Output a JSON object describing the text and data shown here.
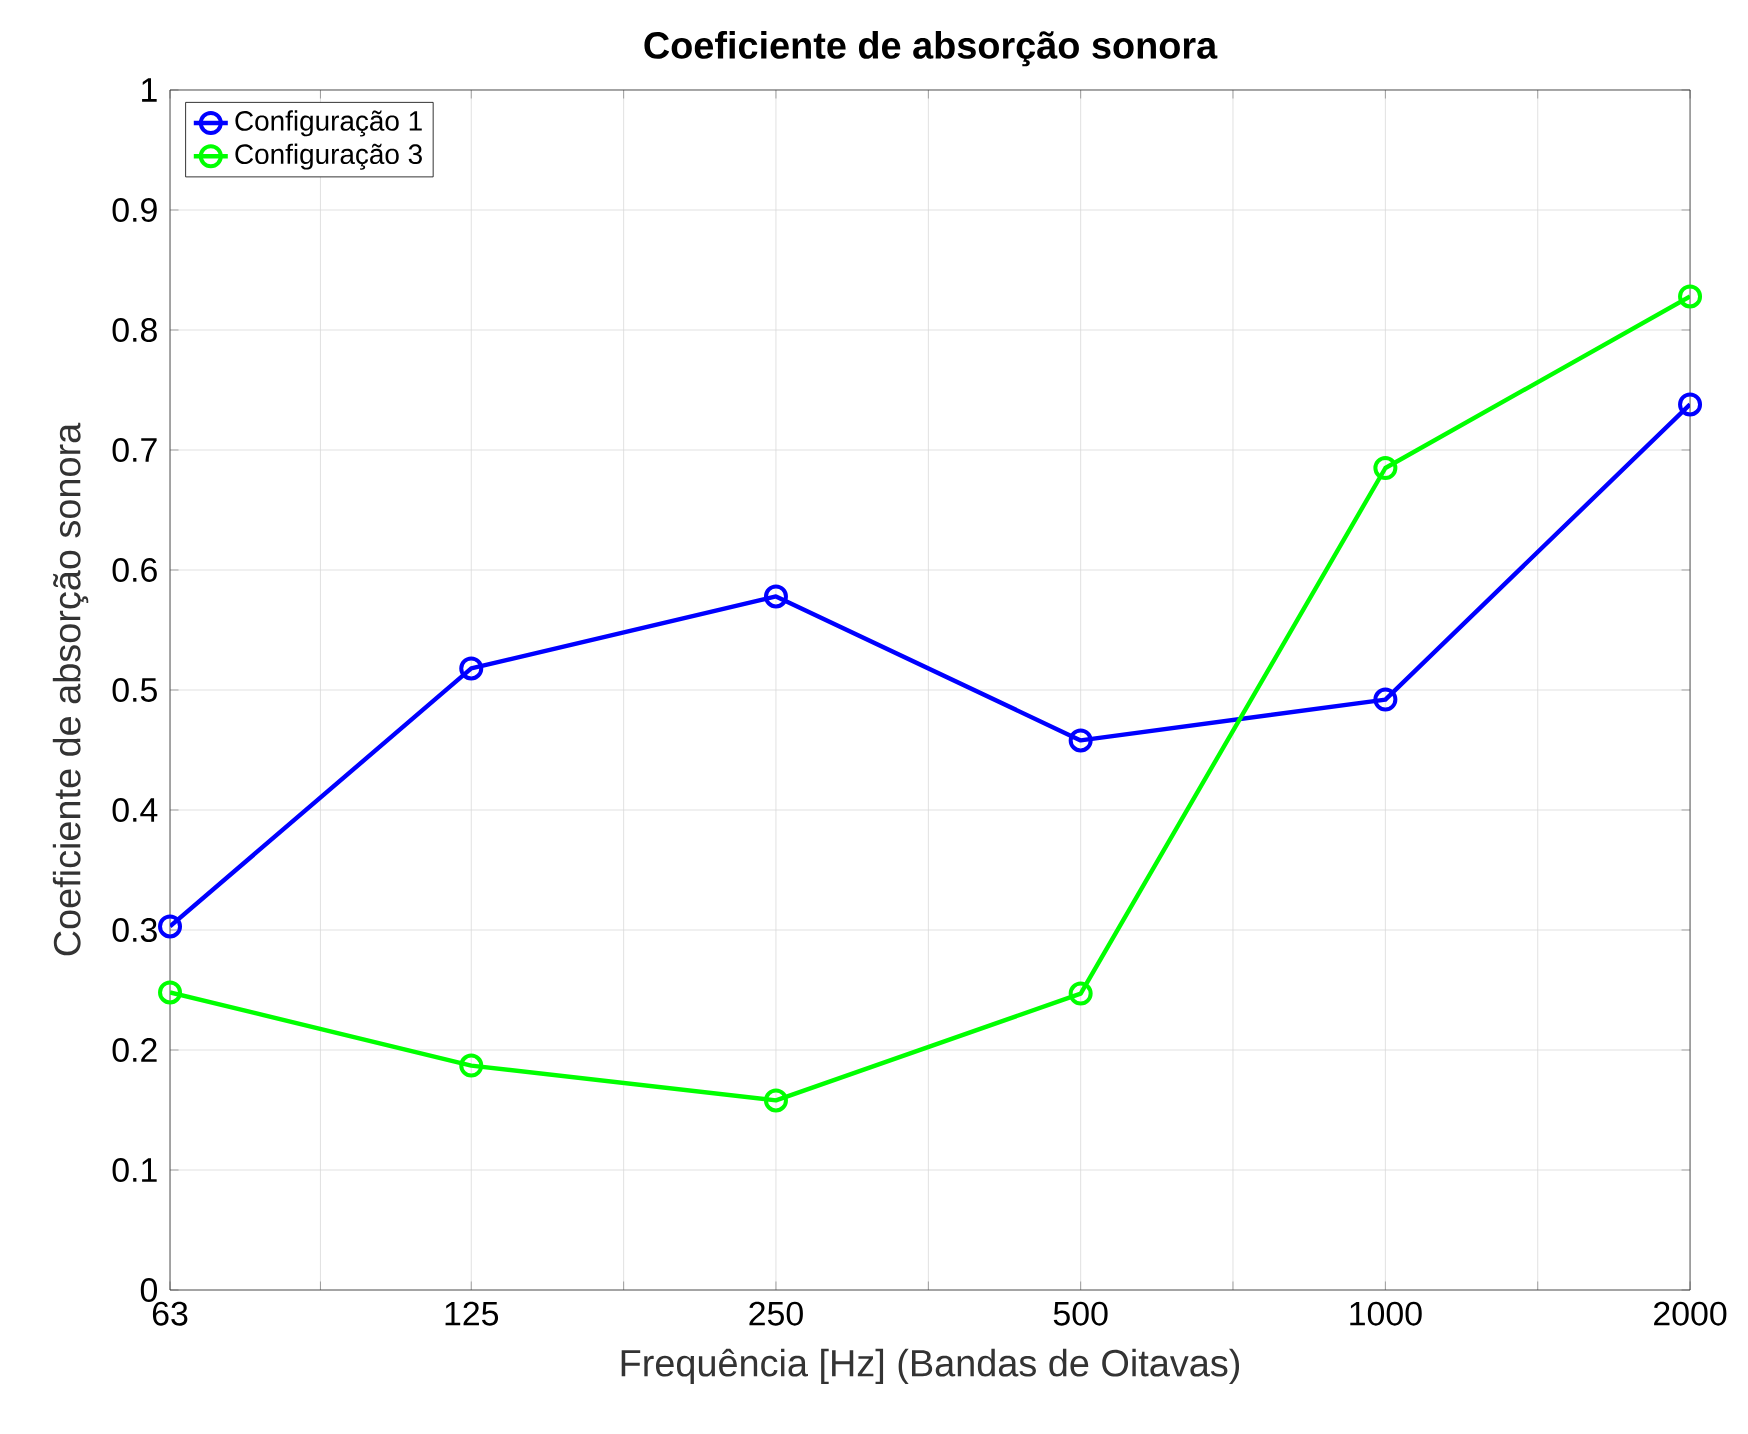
{
  "chart_data": {
    "type": "line",
    "title": "Coeficiente de absorção sonora",
    "xlabel": "Frequência [Hz] (Bandas de Oitavas)",
    "ylabel": "Coeficiente de absorção sonora",
    "x": [
      63,
      125,
      250,
      500,
      1000,
      2000
    ],
    "log": "x",
    "xlim": [
      63,
      2000
    ],
    "xticks": [
      63,
      {
        "value": 88.7,
        "label": null
      },
      125,
      {
        "value": 176.8,
        "label": null
      },
      250,
      {
        "value": 353.6,
        "label": null
      },
      500,
      {
        "value": 707.1,
        "label": null
      },
      1000,
      {
        "value": 1414.2,
        "label": null
      },
      2000
    ],
    "ylim": [
      0,
      1
    ],
    "yticks": [
      0,
      0.1,
      0.2,
      0.3,
      0.4,
      0.5,
      0.6,
      0.7,
      0.8,
      0.9,
      1
    ],
    "series": [
      {
        "name": "Configuração 1",
        "color": "#0000ff",
        "values": [
          0.303,
          0.518,
          0.578,
          0.458,
          0.492,
          0.738
        ]
      },
      {
        "name": "Configuração 3",
        "color": "#00ff00",
        "values": [
          0.248,
          0.187,
          0.158,
          0.247,
          0.685,
          0.828
        ]
      }
    ],
    "grid": true,
    "legend": "top left",
    "marker": "circle",
    "line_style": "solid"
  }
}
